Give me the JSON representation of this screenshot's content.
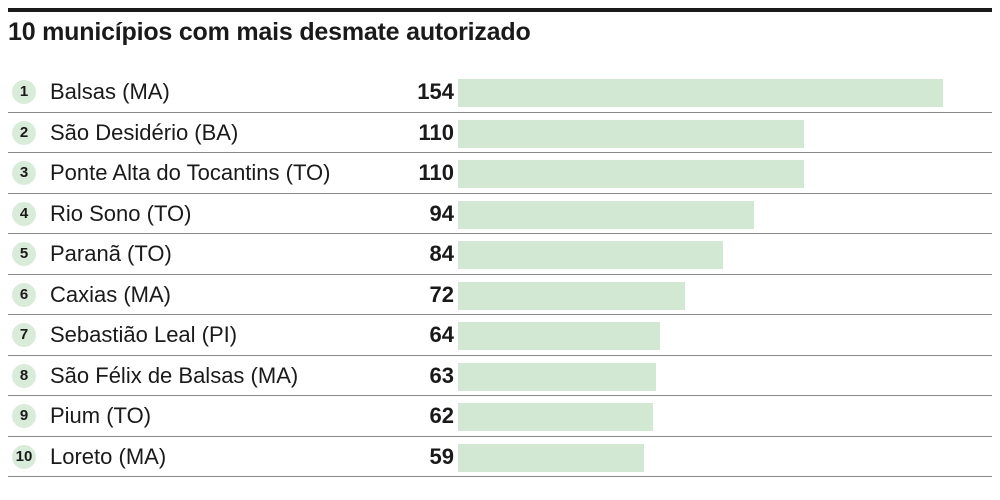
{
  "chart_data": {
    "type": "bar",
    "title": "10 municípios com mais desmate autorizado",
    "ranks": [
      "1",
      "2",
      "3",
      "4",
      "5",
      "6",
      "7",
      "8",
      "9",
      "10"
    ],
    "categories": [
      "Balsas (MA)",
      "São Desidério (BA)",
      "Ponte Alta do Tocantins (TO)",
      "Rio Sono (TO)",
      "Paranã (TO)",
      "Caxias (MA)",
      "Sebastião Leal (PI)",
      "São Félix de Balsas (MA)",
      "Pium (TO)",
      "Loreto (MA)"
    ],
    "values": [
      154,
      110,
      110,
      94,
      84,
      72,
      64,
      63,
      62,
      59
    ],
    "orientation": "horizontal",
    "grid": false,
    "legend": "none",
    "colors": {
      "bar": "#d3e8d3",
      "rank_circle": "#d9ecd9",
      "text": "#1a1a1a",
      "rule": "#1a1a1a"
    }
  }
}
